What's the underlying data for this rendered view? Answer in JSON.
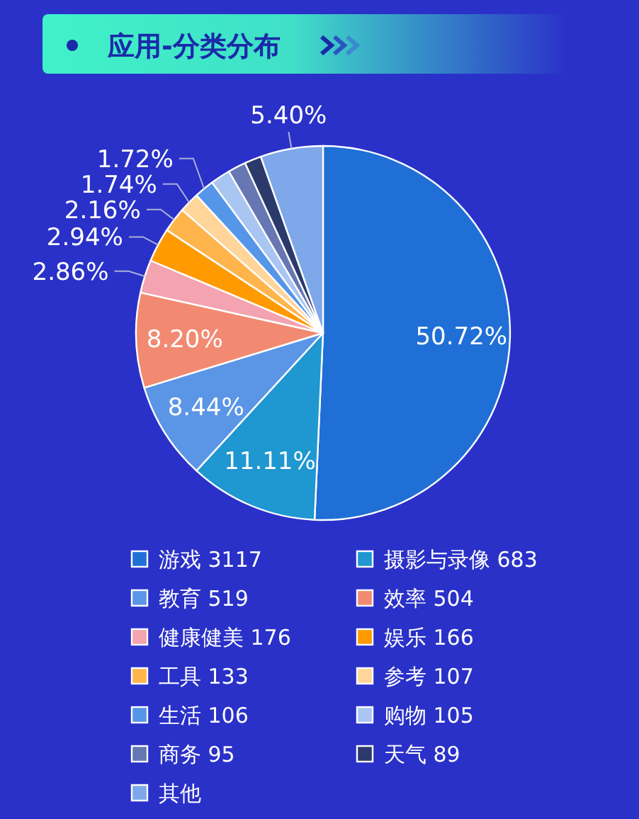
{
  "chart_data": {
    "type": "pie",
    "title": "应用-分类分布",
    "categories": [
      "游戏 3117",
      "摄影与录像 683",
      "教育 519",
      "效率 504",
      "健康健美 176",
      "娱乐 166",
      "工具 133",
      "参考 107",
      "生活 106",
      "购物 105",
      "商务 95",
      "天气 89",
      "其他"
    ],
    "values": [
      50.72,
      11.11,
      8.44,
      8.2,
      2.86,
      2.94,
      2.16,
      1.74,
      1.72,
      1.71,
      1.55,
      1.45,
      5.4
    ],
    "colors": [
      "#1f6fd6",
      "#1f97d0",
      "#5b95e6",
      "#f28a72",
      "#f4a3b0",
      "#ff9a00",
      "#ffb54c",
      "#ffd59a",
      "#5596e8",
      "#a9c5f2",
      "#6677b3",
      "#2b3a6b",
      "#7fa8ea"
    ],
    "value_labels": [
      "50.72%",
      "11.11%",
      "8.44%",
      "8.20%",
      "2.86%",
      "2.94%",
      "2.16%",
      "1.74%",
      "1.72%",
      null,
      null,
      null,
      "5.40%"
    ],
    "legend": "bottom"
  }
}
